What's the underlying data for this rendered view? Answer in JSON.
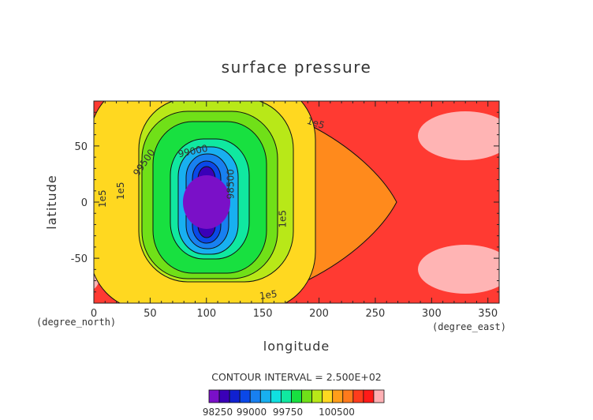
{
  "chart_data": {
    "type": "heatmap",
    "title": "surface pressure",
    "xlabel": "longitude",
    "ylabel": "latitude",
    "x_unit": "(degree_east)",
    "y_unit": "(degree_north)",
    "xlim": [
      0,
      360
    ],
    "ylim": [
      -90,
      90
    ],
    "x_ticks": [
      0,
      50,
      100,
      150,
      200,
      250,
      300,
      350
    ],
    "y_ticks": [
      -50,
      0,
      50
    ],
    "contour_interval_text": "CONTOUR INTERVAL = 2.500E+02",
    "contour_labels": [
      {
        "text": "1e5",
        "lon": 197,
        "lat": 70
      },
      {
        "text": "1e5",
        "lon": 8,
        "lat": 3
      },
      {
        "text": "1e5",
        "lon": 24,
        "lat": 10
      },
      {
        "text": "1e5",
        "lon": 168,
        "lat": -15
      },
      {
        "text": "1e5",
        "lon": 155,
        "lat": -83
      },
      {
        "text": "99500",
        "lon": 45,
        "lat": 35
      },
      {
        "text": "99000",
        "lon": 88,
        "lat": 45
      },
      {
        "text": "98500",
        "lon": 122,
        "lat": 16
      }
    ],
    "colorbar": {
      "tick_labels": [
        "98250",
        "99000",
        "99750",
        "100500"
      ],
      "colors": [
        "#7a10c8",
        "#3a00b8",
        "#1020d0",
        "#0a48e8",
        "#1880f0",
        "#18b0f0",
        "#10e0e0",
        "#10e8a0",
        "#18e040",
        "#70e018",
        "#b8e818",
        "#ffd820",
        "#ff9e1a",
        "#ff7a1c",
        "#ff3c1c",
        "#ff1a18",
        "#ffb0b4"
      ]
    },
    "levels": [
      98250,
      98500,
      98750,
      99000,
      99250,
      99500,
      99750,
      100000,
      100250,
      100500
    ],
    "background_colour": "#ff3a32",
    "high_patch_colour": "#ffb4b4",
    "orange_colour": "#ff8a1c"
  }
}
